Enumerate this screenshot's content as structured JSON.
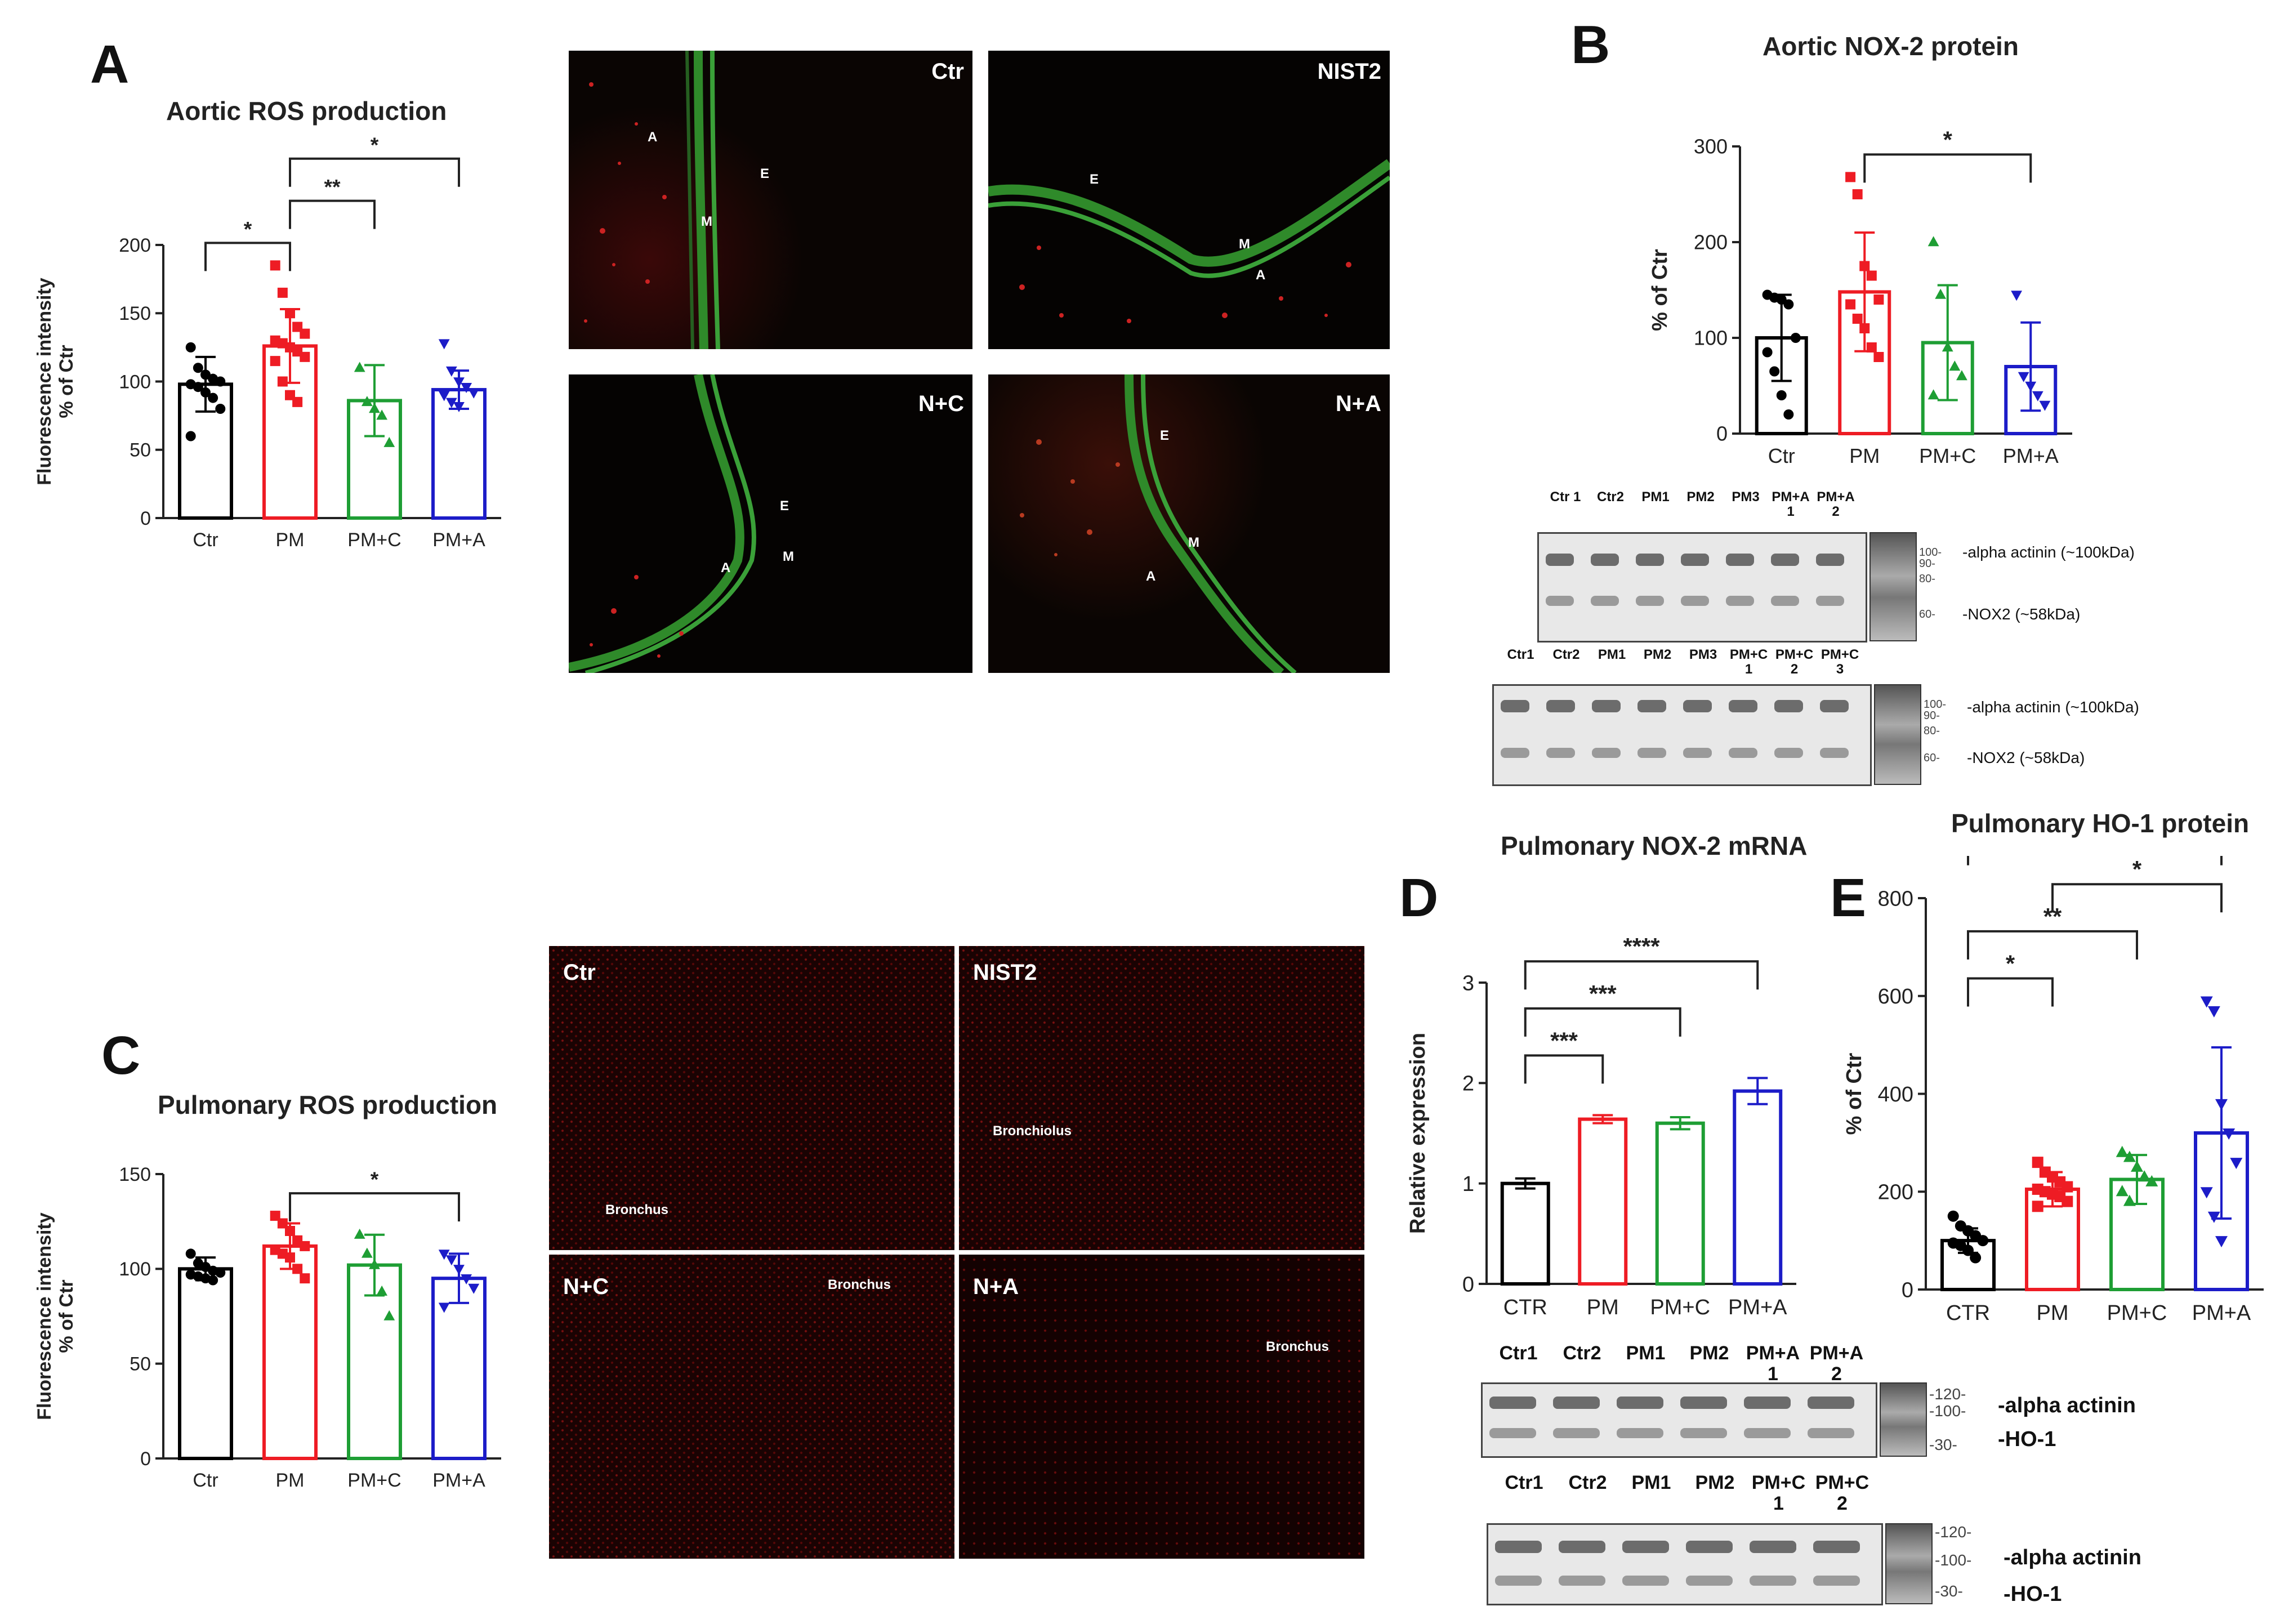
{
  "panels": {
    "A": "A",
    "B": "B",
    "C": "C",
    "D": "D",
    "E": "E"
  },
  "images": {
    "aortic": {
      "ctr": {
        "label": "Ctr",
        "annotations": [
          "A",
          "E",
          "M"
        ]
      },
      "nist2": {
        "label": "NIST2",
        "annotations": [
          "E",
          "M",
          "A"
        ]
      },
      "nc": {
        "label": "N+C",
        "annotations": [
          "E",
          "M",
          "A"
        ]
      },
      "na": {
        "label": "N+A",
        "annotations": [
          "E",
          "M",
          "A"
        ]
      }
    },
    "pulmonary": {
      "ctr": {
        "label": "Ctr",
        "annotation": "Bronchus"
      },
      "nist2": {
        "label": "NIST2",
        "annotation": "Bronchiolus"
      },
      "nc": {
        "label": "N+C",
        "annotation": "Bronchus"
      },
      "na": {
        "label": "N+A",
        "annotation": "Bronchus"
      }
    }
  },
  "blots": {
    "B1": {
      "lanes": [
        "Ctr 1",
        "Ctr2",
        "PM1",
        "PM2",
        "PM3",
        "PM+A\n1",
        "PM+A\n2"
      ],
      "markers": [
        "100-",
        "90-",
        "80-",
        "60-"
      ],
      "bands": [
        "-alpha actinin (~100kDa)",
        "-NOX2 (~58kDa)"
      ]
    },
    "B2": {
      "lanes": [
        "Ctr1",
        "Ctr2",
        "PM1",
        "PM2",
        "PM3",
        "PM+C\n1",
        "PM+C\n2",
        "PM+C\n3"
      ],
      "markers": [
        "100-",
        "90-",
        "80-",
        "60-"
      ],
      "bands": [
        "-alpha actinin (~100kDa)",
        "-NOX2 (~58kDa)"
      ]
    },
    "E1": {
      "lanes": [
        "Ctr1",
        "Ctr2",
        "PM1",
        "PM2",
        "PM+A\n1",
        "PM+A\n2"
      ],
      "markers": [
        "-120-",
        "-100-",
        "-30-"
      ],
      "bands": [
        "-alpha actinin",
        "-HO-1"
      ]
    },
    "E2": {
      "lanes": [
        "Ctr1",
        "Ctr2",
        "PM1",
        "PM2",
        "PM+C\n1",
        "PM+C\n2"
      ],
      "markers": [
        "-120-",
        "-100-",
        "-30-"
      ],
      "bands": [
        "-alpha actinin",
        "-HO-1"
      ]
    }
  },
  "chart_data": [
    {
      "id": "A",
      "type": "bar",
      "title": "Aortic ROS production",
      "ylabel": "Fluorescence intensity\n% of Ctr",
      "ylim": [
        0,
        200
      ],
      "yticks": [
        0,
        50,
        100,
        150,
        200
      ],
      "categories": [
        "Ctr",
        "PM",
        "PM+C",
        "PM+A"
      ],
      "values": [
        98,
        126,
        86,
        94
      ],
      "sd": [
        20,
        27,
        26,
        14
      ],
      "colors": [
        "#000000",
        "#ee1c24",
        "#1e9e34",
        "#1c1cc8"
      ],
      "markers": [
        "circle",
        "square",
        "triangle",
        "triangle-down"
      ],
      "points": [
        [
          125,
          110,
          105,
          102,
          100,
          98,
          96,
          92,
          88,
          80,
          60
        ],
        [
          185,
          165,
          150,
          140,
          135,
          130,
          128,
          125,
          122,
          118,
          115,
          100,
          90,
          85
        ],
        [
          110,
          85,
          80,
          75,
          55
        ],
        [
          128,
          108,
          100,
          96,
          92,
          90,
          85,
          82
        ]
      ],
      "significance": [
        {
          "from": 0,
          "to": 1,
          "label": "*"
        },
        {
          "from": 1,
          "to": 2,
          "label": "**"
        },
        {
          "from": 1,
          "to": 3,
          "label": "*"
        }
      ]
    },
    {
      "id": "B",
      "type": "bar",
      "title": "Aortic NOX-2 protein",
      "ylabel": "% of Ctr",
      "ylim": [
        0,
        300
      ],
      "yticks": [
        0,
        100,
        200,
        300
      ],
      "categories": [
        "Ctr",
        "PM",
        "PM+C",
        "PM+A"
      ],
      "values": [
        100,
        148,
        95,
        70
      ],
      "sd": [
        45,
        62,
        60,
        46
      ],
      "colors": [
        "#000000",
        "#ee1c24",
        "#1e9e34",
        "#1c1cc8"
      ],
      "markers": [
        "circle",
        "square",
        "triangle",
        "triangle-down"
      ],
      "points": [
        [
          145,
          142,
          140,
          135,
          100,
          85,
          65,
          40,
          20
        ],
        [
          268,
          250,
          175,
          165,
          140,
          135,
          120,
          110,
          90,
          80
        ],
        [
          200,
          145,
          90,
          70,
          60,
          40
        ],
        [
          145,
          60,
          50,
          40,
          30
        ]
      ],
      "significance": [
        {
          "from": 1,
          "to": 3,
          "label": "*"
        }
      ]
    },
    {
      "id": "C",
      "type": "bar",
      "title": "Pulmonary ROS production",
      "ylabel": "Fluorescence intensity\n% of Ctr",
      "ylim": [
        0,
        150
      ],
      "yticks": [
        0,
        50,
        100,
        150
      ],
      "categories": [
        "Ctr",
        "PM",
        "PM+C",
        "PM+A"
      ],
      "values": [
        100,
        112,
        102,
        95
      ],
      "sd": [
        6,
        12,
        16,
        13
      ],
      "colors": [
        "#000000",
        "#ee1c24",
        "#1e9e34",
        "#1c1cc8"
      ],
      "markers": [
        "circle",
        "square",
        "triangle",
        "triangle-down"
      ],
      "points": [
        [
          108,
          103,
          101,
          99,
          98,
          97,
          96,
          95,
          94
        ],
        [
          128,
          124,
          120,
          115,
          112,
          110,
          108,
          106,
          100,
          95
        ],
        [
          118,
          108,
          102,
          88,
          75
        ],
        [
          108,
          105,
          100,
          95,
          90,
          80
        ]
      ],
      "significance": [
        {
          "from": 1,
          "to": 3,
          "label": "*"
        }
      ]
    },
    {
      "id": "D",
      "type": "bar",
      "title": "Pulmonary NOX-2 mRNA",
      "ylabel": "Relative expression",
      "ylim": [
        0,
        3
      ],
      "yticks": [
        0,
        1,
        2,
        3
      ],
      "categories": [
        "CTR",
        "PM",
        "PM+C",
        "PM+A"
      ],
      "values": [
        1.0,
        1.64,
        1.6,
        1.92
      ],
      "sd": [
        0.05,
        0.04,
        0.06,
        0.13
      ],
      "colors": [
        "#000000",
        "#ee1c24",
        "#1e9e34",
        "#1c1cc8"
      ],
      "markers": [],
      "points": [
        [],
        [],
        [],
        []
      ],
      "significance": [
        {
          "from": 0,
          "to": 1,
          "label": "***"
        },
        {
          "from": 0,
          "to": 2,
          "label": "***"
        },
        {
          "from": 0,
          "to": 3,
          "label": "****"
        }
      ]
    },
    {
      "id": "E",
      "type": "bar",
      "title": "Pulmonary HO-1 protein",
      "ylabel": "% of Ctr",
      "ylim": [
        0,
        800
      ],
      "yticks": [
        0,
        200,
        400,
        600,
        800
      ],
      "categories": [
        "CTR",
        "PM",
        "PM+C",
        "PM+A"
      ],
      "values": [
        100,
        205,
        225,
        320
      ],
      "sd": [
        25,
        35,
        50,
        175
      ],
      "colors": [
        "#000000",
        "#ee1c24",
        "#1e9e34",
        "#1c1cc8"
      ],
      "markers": [
        "circle",
        "square",
        "triangle",
        "triangle-down"
      ],
      "points": [
        [
          150,
          130,
          120,
          110,
          100,
          95,
          90,
          80,
          65
        ],
        [
          260,
          240,
          230,
          220,
          210,
          205,
          200,
          195,
          190,
          180,
          170
        ],
        [
          280,
          270,
          250,
          230,
          220,
          200,
          180
        ],
        [
          590,
          570,
          380,
          320,
          260,
          200,
          150,
          100
        ]
      ],
      "significance": [
        {
          "from": 0,
          "to": 1,
          "label": "*"
        },
        {
          "from": 0,
          "to": 2,
          "label": "**"
        },
        {
          "from": 0,
          "to": 3,
          "label": "****"
        },
        {
          "from": 1,
          "to": 3,
          "label": "*"
        }
      ]
    }
  ]
}
